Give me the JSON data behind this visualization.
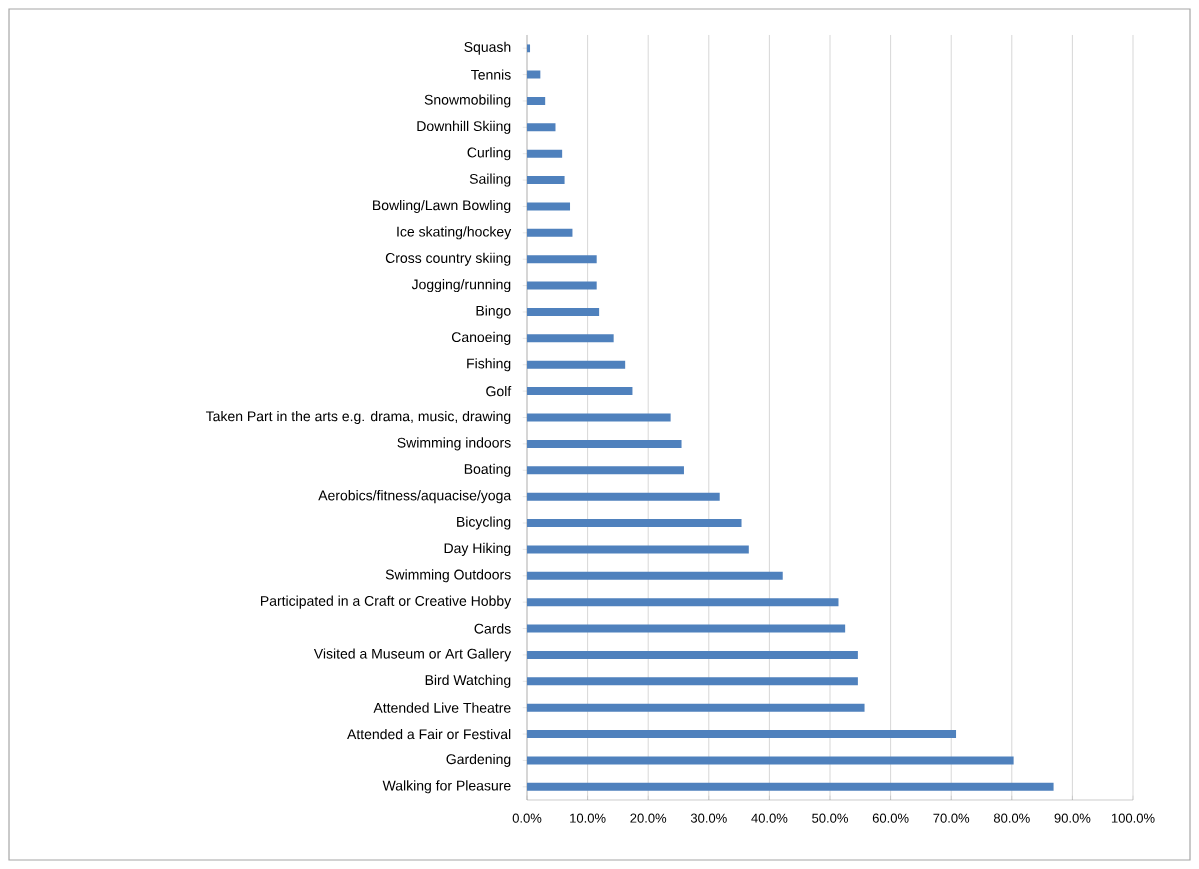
{
  "chart_data": {
    "type": "bar",
    "orientation": "horizontal",
    "categories": [
      "Squash",
      "Tennis",
      "Snowmobiling",
      "Downhill Skiing",
      "Curling",
      "Sailing",
      "Bowling/Lawn Bowling",
      "Ice skating/hockey",
      "Cross country skiing",
      "Jogging/running",
      "Bingo",
      "Canoeing",
      "Fishing",
      "Golf",
      "Taken Part in the arts e.g. drama, music, drawing",
      "Swimming indoors",
      "Boating",
      "Aerobics/fitness/aquacise/yoga",
      "Bicycling",
      "Day Hiking",
      "Swimming Outdoors",
      "Participated in a Craft or Creative Hobby",
      "Cards",
      "Visited a Museum or Art Gallery",
      "Bird Watching",
      "Attended Live Theatre",
      "Attended a Fair or Festival",
      "Gardening",
      "Walking for Pleasure"
    ],
    "values": [
      0.5,
      2.2,
      3.0,
      4.7,
      5.8,
      6.2,
      7.1,
      7.5,
      11.5,
      11.5,
      11.9,
      14.3,
      16.2,
      17.4,
      23.7,
      25.5,
      25.9,
      31.8,
      35.4,
      36.6,
      42.2,
      51.4,
      52.5,
      54.6,
      54.6,
      55.7,
      70.8,
      80.3,
      86.9
    ],
    "color": "#4f81bd",
    "xlim": [
      0,
      100
    ],
    "xticks": [
      {
        "value": 0,
        "label": "0.0%"
      },
      {
        "value": 10,
        "label": "10.0%"
      },
      {
        "value": 20,
        "label": "20.0%"
      },
      {
        "value": 30,
        "label": "30.0%"
      },
      {
        "value": 40,
        "label": "40.0%"
      },
      {
        "value": 50,
        "label": "50.0%"
      },
      {
        "value": 60,
        "label": "60.0%"
      },
      {
        "value": 70,
        "label": "70.0%"
      },
      {
        "value": 80,
        "label": "80.0%"
      },
      {
        "value": 90,
        "label": "90.0%"
      },
      {
        "value": 100,
        "label": "100.0%"
      }
    ],
    "grid": "x"
  }
}
